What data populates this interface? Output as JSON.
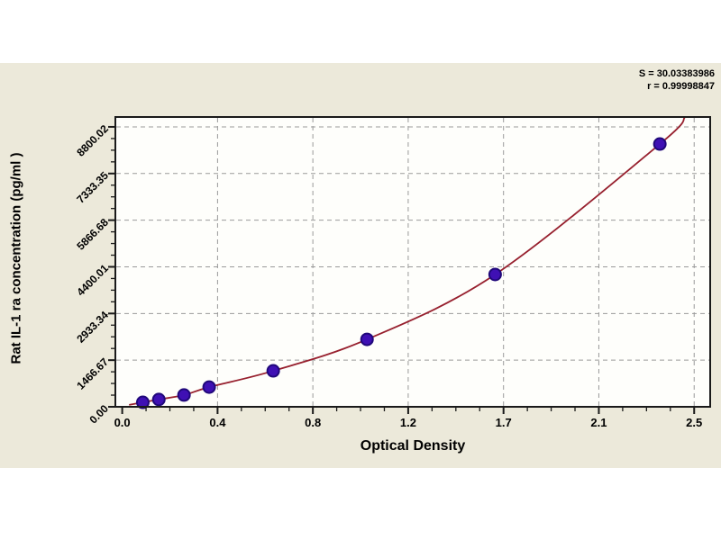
{
  "page": {
    "background": "#ffffff",
    "panel_background": "#ece9da"
  },
  "annotation": {
    "line1": "S = 30.03383986",
    "line2": "r = 0.99998847"
  },
  "chart_data": {
    "type": "scatter",
    "title": "",
    "xlabel": "Optical Density",
    "ylabel": "Rat IL-1 ra concentration (pg/ml )",
    "xlim": [
      -0.03,
      2.57
    ],
    "ylim": [
      0,
      9110
    ],
    "grid": true,
    "legend_position": "none",
    "x_ticks": [
      {
        "value": 0.0,
        "label": "0.0"
      },
      {
        "value": 0.4167,
        "label": "0.4"
      },
      {
        "value": 0.8333,
        "label": "0.8"
      },
      {
        "value": 1.25,
        "label": "1.2"
      },
      {
        "value": 1.6667,
        "label": "1.7"
      },
      {
        "value": 2.0833,
        "label": "2.1"
      },
      {
        "value": 2.5,
        "label": "2.5"
      }
    ],
    "y_ticks": [
      {
        "value": 0,
        "label": "0.00"
      },
      {
        "value": 1466.67,
        "label": "1466.67"
      },
      {
        "value": 2933.34,
        "label": "2933.34"
      },
      {
        "value": 4400.01,
        "label": "4400.01"
      },
      {
        "value": 5866.68,
        "label": "5866.68"
      },
      {
        "value": 7333.35,
        "label": "7333.35"
      },
      {
        "value": 8800.02,
        "label": "8800.02"
      }
    ],
    "minor_divisions": 4,
    "series": [
      {
        "name": "standard-points",
        "type": "scatter",
        "marker": "circle",
        "marker_color": "#3f10b4",
        "marker_edge_color": "#20087a",
        "points": [
          {
            "x": 0.09,
            "y": 140
          },
          {
            "x": 0.16,
            "y": 230
          },
          {
            "x": 0.27,
            "y": 370
          },
          {
            "x": 0.38,
            "y": 620
          },
          {
            "x": 0.66,
            "y": 1130
          },
          {
            "x": 1.07,
            "y": 2120
          },
          {
            "x": 1.63,
            "y": 4160
          },
          {
            "x": 2.35,
            "y": 8260
          }
        ]
      }
    ],
    "fit_curve": {
      "color": "#97202e",
      "start": {
        "x": 0.03,
        "y": 60
      },
      "end": {
        "x": 2.46,
        "y": 9110
      }
    },
    "colors": {
      "grid": "#9a9a9a",
      "frame": "#1a1a1a",
      "plot_background": "#fefefb",
      "text": "#000000"
    }
  }
}
